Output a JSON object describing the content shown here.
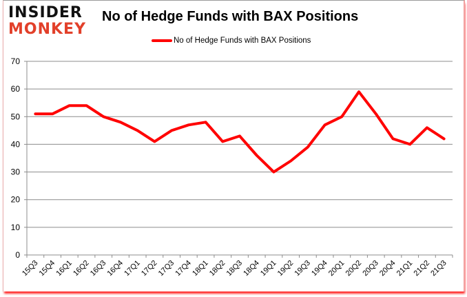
{
  "brand": {
    "line1": "INSIDER",
    "line2": "MONKEY",
    "line1_color": "#111111",
    "line2_color": "#e2402a"
  },
  "chart_data": {
    "type": "line",
    "title": "No of Hedge Funds with BAX Positions",
    "xlabel": "",
    "ylabel": "",
    "ylim": [
      0,
      70
    ],
    "yticks": [
      0,
      10,
      20,
      30,
      40,
      50,
      60,
      70
    ],
    "grid": true,
    "legend_position": "top",
    "categories": [
      "15Q3",
      "15Q4",
      "16Q1",
      "16Q2",
      "16Q3",
      "16Q4",
      "17Q1",
      "17Q2",
      "17Q3",
      "17Q4",
      "18Q1",
      "18Q2",
      "18Q3",
      "18Q4",
      "19Q1",
      "19Q2",
      "19Q3",
      "19Q4",
      "20Q1",
      "20Q2",
      "20Q3",
      "20Q4",
      "21Q1",
      "21Q2",
      "21Q3"
    ],
    "series": [
      {
        "name": "No of Hedge Funds with BAX Positions",
        "color": "#ff0000",
        "values": [
          51,
          51,
          54,
          54,
          50,
          48,
          45,
          41,
          45,
          47,
          48,
          41,
          43,
          36,
          30,
          34,
          39,
          47,
          50,
          59,
          51,
          42,
          40,
          46,
          42
        ]
      }
    ]
  }
}
